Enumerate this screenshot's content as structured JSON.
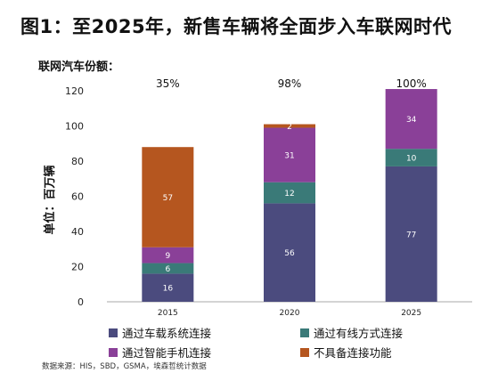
{
  "title": "图1：至2025年，新售车辆将全面步入车联网时代",
  "subtitle": "联网汽车份额：",
  "source": "数据来源：HIS，SBD，GSMA，埃森哲统计数据",
  "colors": {
    "embedded": "#4b4b7e",
    "tethered": "#3a7a78",
    "smartphone": "#8a4098",
    "none": "#b5561f"
  },
  "chart_data": {
    "type": "bar",
    "stacked": true,
    "categories": [
      "2015",
      "2020",
      "2025"
    ],
    "ylabel": "单位：百万辆",
    "xlabel": "",
    "ylim": [
      0,
      120
    ],
    "yticks": [
      0,
      20,
      40,
      60,
      80,
      100,
      120
    ],
    "grid": false,
    "legend_position": "bottom",
    "series": [
      {
        "name": "通过车载系统连接",
        "key": "embedded",
        "values": [
          16,
          56,
          77
        ]
      },
      {
        "name": "通过有线方式连接",
        "key": "tethered",
        "values": [
          6,
          12,
          10
        ]
      },
      {
        "name": "通过智能手机连接",
        "key": "smartphone",
        "values": [
          9,
          31,
          34
        ]
      },
      {
        "name": "不具备连接功能",
        "key": "none",
        "values": [
          57,
          2,
          null
        ]
      }
    ],
    "annotations": [
      "35%",
      "98%",
      "100%"
    ]
  }
}
